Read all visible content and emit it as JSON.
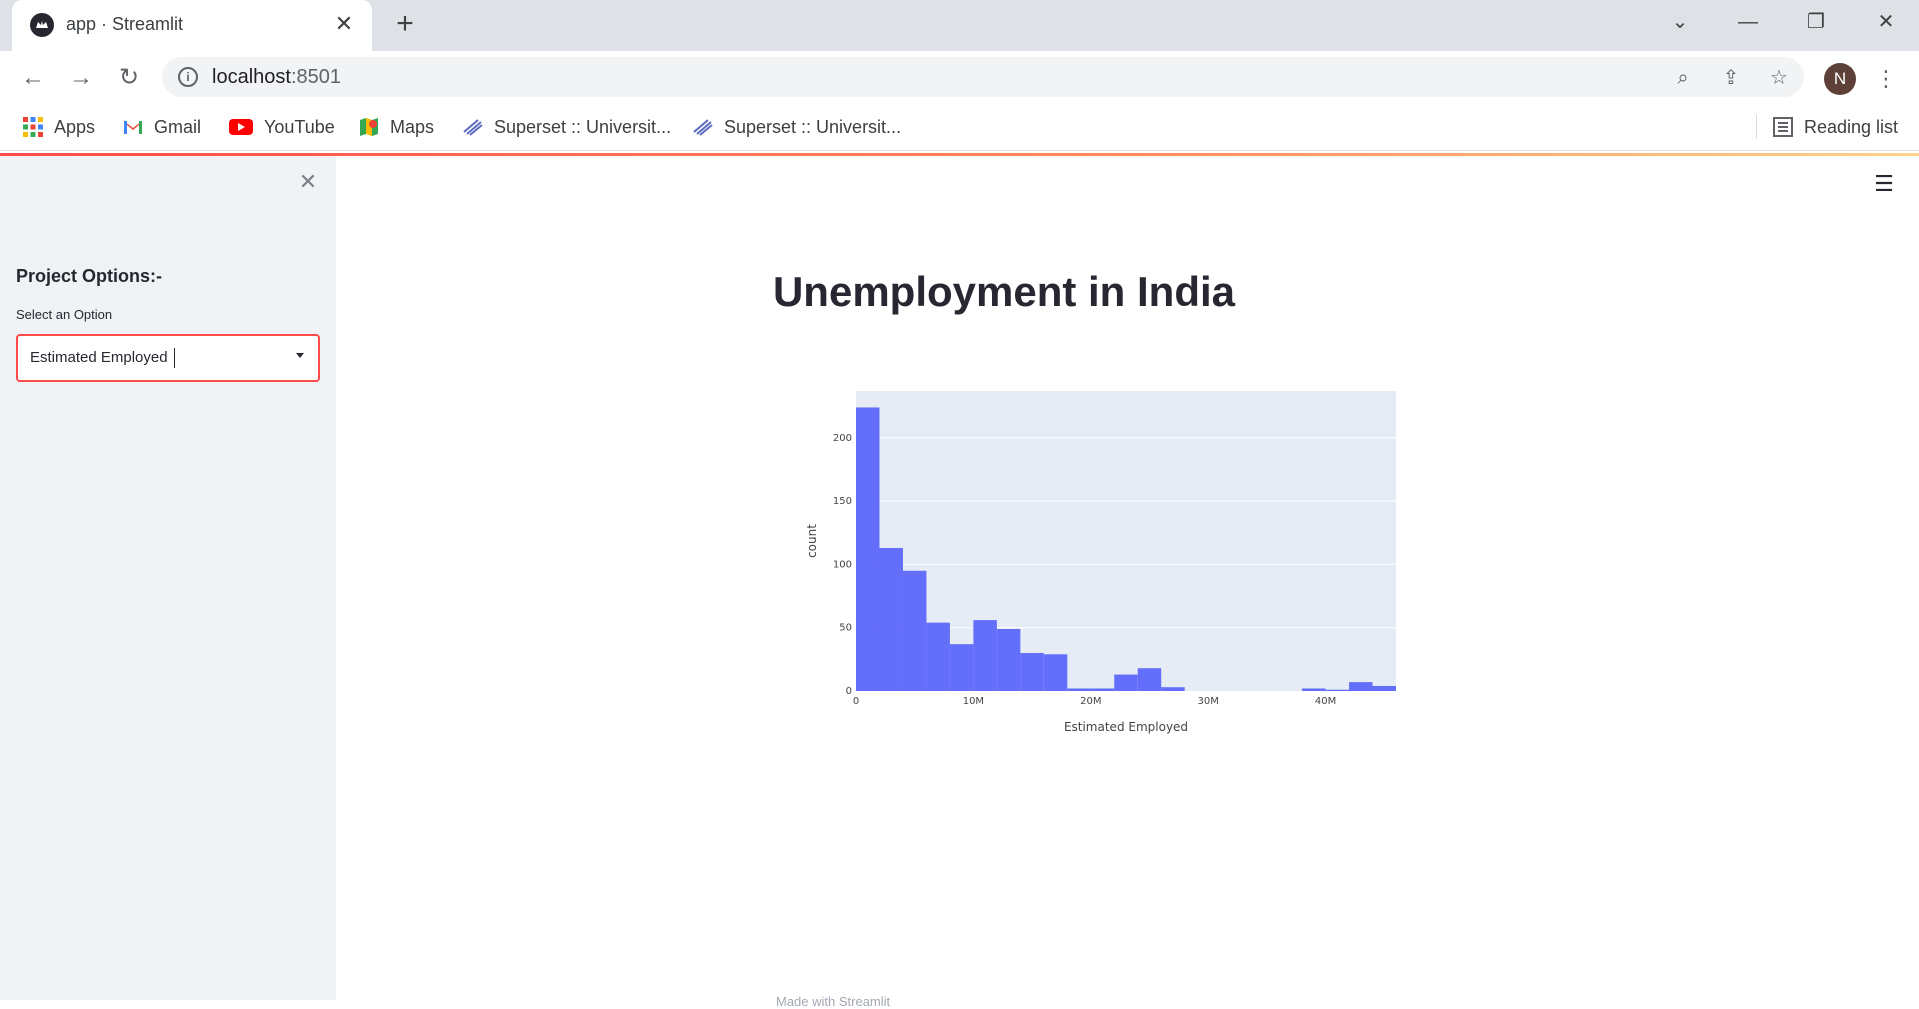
{
  "browser": {
    "tab_title": "app · Streamlit",
    "url_host": "localhost",
    "url_port": ":8501",
    "profile_initial": "N",
    "bookmarks": [
      {
        "label": "Apps",
        "icon": "apps-grid-icon"
      },
      {
        "label": "Gmail",
        "icon": "gmail-icon"
      },
      {
        "label": "YouTube",
        "icon": "youtube-icon"
      },
      {
        "label": "Maps",
        "icon": "maps-icon"
      },
      {
        "label": "Superset :: Universit...",
        "icon": "superset-icon"
      },
      {
        "label": "Superset :: Universit...",
        "icon": "superset-icon"
      }
    ],
    "reading_list": "Reading list"
  },
  "sidebar": {
    "heading": "Project Options:-",
    "select_label": "Select an Option",
    "select_value": "Estimated Employed"
  },
  "main": {
    "title": "Unemployment in India",
    "footer": "Made with Streamlit"
  },
  "colors": {
    "accent": "#ff4b4b",
    "bar": "#636efa",
    "plot_bg": "#e5ecf6"
  },
  "chart_data": {
    "type": "bar",
    "title": "",
    "xlabel": "Estimated Employed",
    "ylabel": "count",
    "xlim": [
      0,
      46000000
    ],
    "ylim": [
      0,
      237
    ],
    "bin_width": 2000000,
    "bin_starts": [
      0,
      2000000,
      4000000,
      6000000,
      8000000,
      10000000,
      12000000,
      14000000,
      16000000,
      18000000,
      20000000,
      22000000,
      24000000,
      26000000,
      28000000,
      30000000,
      32000000,
      34000000,
      36000000,
      38000000,
      40000000,
      42000000,
      44000000
    ],
    "values": [
      224,
      113,
      95,
      54,
      37,
      56,
      49,
      30,
      29,
      2,
      2,
      13,
      18,
      3,
      0,
      0,
      0,
      0,
      0,
      2,
      1,
      7,
      4
    ],
    "x_ticks": [
      {
        "v": 0,
        "label": "0"
      },
      {
        "v": 10000000,
        "label": "10M"
      },
      {
        "v": 20000000,
        "label": "20M"
      },
      {
        "v": 30000000,
        "label": "30M"
      },
      {
        "v": 40000000,
        "label": "40M"
      }
    ],
    "y_ticks": [
      {
        "v": 0,
        "label": "0"
      },
      {
        "v": 50,
        "label": "50"
      },
      {
        "v": 100,
        "label": "100"
      },
      {
        "v": 150,
        "label": "150"
      },
      {
        "v": 200,
        "label": "200"
      }
    ],
    "grid": true,
    "legend": "none"
  }
}
